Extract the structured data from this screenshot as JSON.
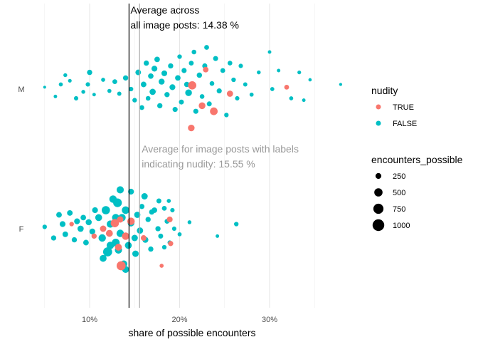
{
  "chart_data": {
    "type": "scatter",
    "x_axis_title": "share of possible encounters",
    "x_ticks": [
      {
        "value": 10,
        "label": "10%"
      },
      {
        "value": 20,
        "label": "20%"
      },
      {
        "value": 30,
        "label": "30%"
      }
    ],
    "x_minor_gridlines": [
      5,
      15,
      25,
      35
    ],
    "xlim": [
      4,
      37.5
    ],
    "y_categories": [
      "M",
      "F"
    ],
    "grid": true,
    "reference_lines": [
      {
        "value": 14.38,
        "color": "#000000",
        "label_lines": [
          "Average across",
          "all image posts: 14.38 %"
        ]
      },
      {
        "value": 15.55,
        "color": "#aaaaaa",
        "label_lines": [
          "Average for image posts with labels",
          "indicating nudity: 15.55 %"
        ]
      }
    ],
    "legends": [
      {
        "title": "nudity",
        "entries": [
          {
            "label": "TRUE",
            "color": "#F8766D"
          },
          {
            "label": "FALSE",
            "color": "#00BFC4"
          }
        ]
      },
      {
        "title": "encounters_possible",
        "entries": [
          {
            "label": "250",
            "size": 250
          },
          {
            "label": "500",
            "size": 500
          },
          {
            "label": "750",
            "size": 750
          },
          {
            "label": "1000",
            "size": 1000
          }
        ]
      }
    ],
    "legend_placement": "right",
    "series": [
      {
        "category": "M",
        "nudity": "FALSE",
        "color": "#00BFC4",
        "points": [
          [
            5.0,
            0.02,
            60
          ],
          [
            6.2,
            -0.08,
            90
          ],
          [
            6.8,
            0.05,
            120
          ],
          [
            7.3,
            0.15,
            110
          ],
          [
            7.8,
            0.09,
            100
          ],
          [
            8.5,
            -0.1,
            140
          ],
          [
            9.3,
            -0.03,
            110
          ],
          [
            9.8,
            0.05,
            140
          ],
          [
            10.0,
            0.18,
            200
          ],
          [
            10.5,
            -0.06,
            90
          ],
          [
            11.5,
            0.1,
            120
          ],
          [
            12.2,
            -0.02,
            120
          ],
          [
            12.8,
            0.08,
            170
          ],
          [
            13.3,
            -0.05,
            130
          ],
          [
            14.0,
            0.12,
            200
          ],
          [
            14.6,
            0.0,
            150
          ],
          [
            15.0,
            -0.12,
            150
          ],
          [
            15.4,
            0.18,
            230
          ],
          [
            15.8,
            -0.2,
            170
          ],
          [
            16.0,
            0.05,
            230
          ],
          [
            16.3,
            0.28,
            200
          ],
          [
            16.5,
            -0.1,
            160
          ],
          [
            16.8,
            0.14,
            220
          ],
          [
            17.0,
            -0.03,
            280
          ],
          [
            17.2,
            0.22,
            250
          ],
          [
            17.5,
            0.32,
            220
          ],
          [
            17.8,
            -0.18,
            200
          ],
          [
            18.0,
            0.08,
            260
          ],
          [
            18.3,
            0.17,
            240
          ],
          [
            18.6,
            -0.06,
            200
          ],
          [
            19.0,
            0.25,
            200
          ],
          [
            19.2,
            0.02,
            250
          ],
          [
            19.5,
            -0.22,
            190
          ],
          [
            19.8,
            0.12,
            220
          ],
          [
            20.0,
            0.35,
            150
          ],
          [
            20.2,
            -0.14,
            180
          ],
          [
            20.5,
            0.2,
            190
          ],
          [
            20.8,
            0.05,
            210
          ],
          [
            21.0,
            -0.04,
            330
          ],
          [
            21.3,
            0.28,
            170
          ],
          [
            21.6,
            0.4,
            160
          ],
          [
            21.8,
            -0.24,
            190
          ],
          [
            22.2,
            0.15,
            210
          ],
          [
            22.5,
            -0.08,
            160
          ],
          [
            22.8,
            0.25,
            190
          ],
          [
            23.0,
            0.45,
            170
          ],
          [
            23.3,
            -0.16,
            180
          ],
          [
            23.6,
            0.06,
            160
          ],
          [
            24.0,
            0.33,
            180
          ],
          [
            24.4,
            -0.02,
            190
          ],
          [
            24.8,
            0.2,
            170
          ],
          [
            25.2,
            -0.28,
            150
          ],
          [
            25.6,
            0.28,
            160
          ],
          [
            26.0,
            0.1,
            150
          ],
          [
            26.4,
            -0.1,
            140
          ],
          [
            26.8,
            0.25,
            140
          ],
          [
            27.3,
            0.05,
            130
          ],
          [
            28.0,
            -0.06,
            120
          ],
          [
            28.8,
            0.18,
            110
          ],
          [
            30.0,
            0.4,
            90
          ],
          [
            30.3,
            0.0,
            120
          ],
          [
            31.0,
            0.2,
            90
          ],
          [
            32.4,
            -0.1,
            120
          ],
          [
            33.3,
            0.18,
            100
          ],
          [
            33.8,
            -0.12,
            90
          ],
          [
            34.5,
            0.1,
            80
          ],
          [
            37.9,
            0.05,
            70
          ]
        ]
      },
      {
        "category": "M",
        "nudity": "TRUE",
        "color": "#F8766D",
        "points": [
          [
            21.4,
            0.04,
            500
          ],
          [
            22.9,
            0.21,
            230
          ],
          [
            22.5,
            -0.18,
            330
          ],
          [
            23.8,
            -0.24,
            430
          ],
          [
            25.6,
            -0.05,
            280
          ],
          [
            21.3,
            -0.42,
            320
          ],
          [
            31.9,
            0.02,
            170
          ]
        ]
      },
      {
        "category": "F",
        "nudity": "FALSE",
        "color": "#00BFC4",
        "points": [
          [
            5.0,
            0.02,
            150
          ],
          [
            6.0,
            -0.1,
            200
          ],
          [
            6.6,
            0.15,
            230
          ],
          [
            7.0,
            0.05,
            250
          ],
          [
            7.3,
            -0.06,
            230
          ],
          [
            7.8,
            0.17,
            230
          ],
          [
            8.3,
            -0.12,
            200
          ],
          [
            8.6,
            0.08,
            250
          ],
          [
            9.0,
            0.0,
            280
          ],
          [
            9.3,
            0.12,
            220
          ],
          [
            9.6,
            -0.15,
            230
          ],
          [
            9.9,
            0.07,
            270
          ],
          [
            10.3,
            -0.03,
            250
          ],
          [
            10.6,
            0.2,
            250
          ],
          [
            11.0,
            0.12,
            350
          ],
          [
            11.4,
            -0.1,
            400
          ],
          [
            11.8,
            0.2,
            500
          ],
          [
            12.0,
            -0.25,
            600
          ],
          [
            12.3,
            0.05,
            380
          ],
          [
            12.6,
            0.32,
            400
          ],
          [
            12.9,
            -0.15,
            450
          ],
          [
            13.1,
            0.28,
            550
          ],
          [
            13.4,
            -0.05,
            400
          ],
          [
            13.6,
            0.12,
            400
          ],
          [
            13.8,
            -0.38,
            350
          ],
          [
            14.0,
            0.2,
            420
          ],
          [
            14.3,
            -0.18,
            350
          ],
          [
            14.6,
            0.06,
            320
          ],
          [
            15.0,
            -0.1,
            300
          ],
          [
            15.3,
            0.15,
            280
          ],
          [
            15.6,
            -0.02,
            290
          ],
          [
            15.8,
            0.24,
            200
          ],
          [
            16.2,
            -0.12,
            260
          ],
          [
            16.5,
            0.1,
            200
          ],
          [
            16.8,
            -0.22,
            200
          ],
          [
            17.2,
            0.2,
            220
          ],
          [
            17.6,
            0.0,
            200
          ],
          [
            17.9,
            -0.08,
            180
          ],
          [
            18.3,
            0.22,
            170
          ],
          [
            18.6,
            0.08,
            170
          ],
          [
            18.9,
            -0.15,
            140
          ],
          [
            19.2,
            0.2,
            140
          ],
          [
            19.4,
            0.0,
            140
          ],
          [
            20.0,
            -0.06,
            120
          ],
          [
            21.1,
            0.07,
            110
          ],
          [
            24.2,
            -0.08,
            90
          ],
          [
            26.3,
            0.05,
            150
          ],
          [
            11.5,
            -0.32,
            350
          ],
          [
            12.3,
            -0.18,
            400
          ],
          [
            12.9,
            0.12,
            400
          ],
          [
            13.2,
            -0.23,
            380
          ],
          [
            13.4,
            0.42,
            380
          ],
          [
            14.0,
            -0.44,
            350
          ],
          [
            14.6,
            0.4,
            250
          ],
          [
            15.1,
            -0.27,
            300
          ],
          [
            16.1,
            0.35,
            300
          ],
          [
            16.9,
            0.18,
            200
          ],
          [
            17.7,
            0.3,
            180
          ],
          [
            18.3,
            -0.2,
            150
          ],
          [
            18.8,
            0.3,
            120
          ]
        ]
      },
      {
        "category": "F",
        "nudity": "TRUE",
        "color": "#F8766D",
        "points": [
          [
            8.0,
            0.05,
            150
          ],
          [
            10.5,
            -0.08,
            200
          ],
          [
            11.5,
            0.0,
            300
          ],
          [
            12.2,
            -0.05,
            350
          ],
          [
            12.8,
            0.06,
            500
          ],
          [
            13.4,
            0.1,
            300
          ],
          [
            14.0,
            -0.08,
            400
          ],
          [
            14.6,
            0.08,
            400
          ],
          [
            13.2,
            -0.2,
            350
          ],
          [
            13.5,
            -0.4,
            600
          ],
          [
            16.0,
            -0.1,
            230
          ],
          [
            18.9,
            0.1,
            250
          ],
          [
            19.0,
            -0.16,
            200
          ],
          [
            18.0,
            -0.4,
            120
          ]
        ]
      }
    ]
  }
}
